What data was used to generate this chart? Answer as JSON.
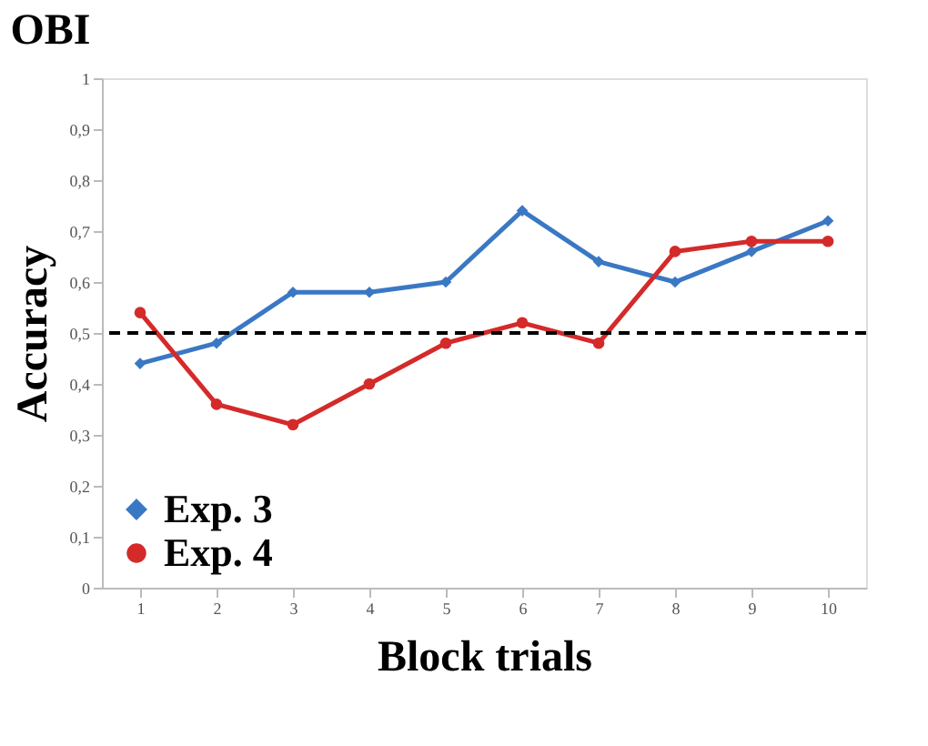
{
  "chart_data": {
    "type": "line",
    "title": "OBI",
    "xlabel": "Block trials",
    "ylabel": "Accuracy",
    "categories": [
      "1",
      "2",
      "3",
      "4",
      "5",
      "6",
      "7",
      "8",
      "9",
      "10"
    ],
    "series": [
      {
        "name": "Exp. 3",
        "color": "#3a78c4",
        "marker": "diamond",
        "values": [
          0.44,
          0.48,
          0.58,
          0.58,
          0.6,
          0.74,
          0.64,
          0.6,
          0.66,
          0.72
        ]
      },
      {
        "name": "Exp. 4",
        "color": "#d42a2a",
        "marker": "circle",
        "values": [
          0.54,
          0.36,
          0.32,
          0.4,
          0.48,
          0.52,
          0.48,
          0.66,
          0.68,
          0.68
        ]
      }
    ],
    "ylim": [
      0,
      1
    ],
    "yticks": [
      0,
      {
        "value": 0.1,
        "label": "0,1"
      },
      {
        "value": 0.2,
        "label": "0,2"
      },
      {
        "value": 0.3,
        "label": "0,3"
      },
      {
        "value": 0.4,
        "label": "0,4"
      },
      {
        "value": 0.5,
        "label": "0,5"
      },
      {
        "value": 0.6,
        "label": "0,6"
      },
      {
        "value": 0.7,
        "label": "0,7"
      },
      {
        "value": 0.8,
        "label": "0,8"
      },
      {
        "value": 0.9,
        "label": "0,9"
      },
      1
    ],
    "ref_lines": [
      {
        "axis": "y",
        "value": 0.5,
        "line_style": "dashed",
        "color": "#000000"
      }
    ],
    "legend": "bottom left",
    "grid": false,
    "line_style": "solid"
  }
}
